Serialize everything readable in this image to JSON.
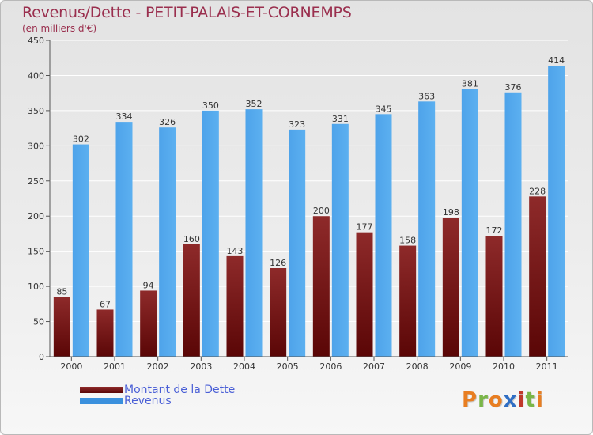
{
  "title": "Revenus/Dette - PETIT-PALAIS-ET-CORNEMPS",
  "subtitle": "(en milliers d'€)",
  "logo": {
    "text": "Proxiti",
    "colors": [
      "#e87e22",
      "#7ab648",
      "#e87e22",
      "#2f6ec4",
      "#c0392b",
      "#7ab648",
      "#e87e22"
    ]
  },
  "colors": {
    "debt": "#7a1a1a",
    "revenue": "#3a90dd",
    "axis": "#555555",
    "grid": "#ffffff"
  },
  "chart_data": {
    "type": "bar",
    "title": "Revenus/Dette - PETIT-PALAIS-ET-CORNEMPS",
    "subtitle": "(en milliers d'€)",
    "categories": [
      "2000",
      "2001",
      "2002",
      "2003",
      "2004",
      "2005",
      "2006",
      "2007",
      "2008",
      "2009",
      "2010",
      "2011"
    ],
    "series": [
      {
        "name": "Montant de la Dette",
        "values": [
          85,
          67,
          94,
          160,
          143,
          126,
          200,
          177,
          158,
          198,
          172,
          228
        ]
      },
      {
        "name": "Revenus",
        "values": [
          302,
          334,
          326,
          350,
          352,
          323,
          331,
          345,
          363,
          381,
          376,
          414
        ]
      }
    ],
    "ylim": [
      0,
      450
    ],
    "yticks": [
      0,
      50,
      100,
      150,
      200,
      250,
      300,
      350,
      400,
      450
    ],
    "grid": true,
    "legend": "bottom-left",
    "data_labels": true
  }
}
